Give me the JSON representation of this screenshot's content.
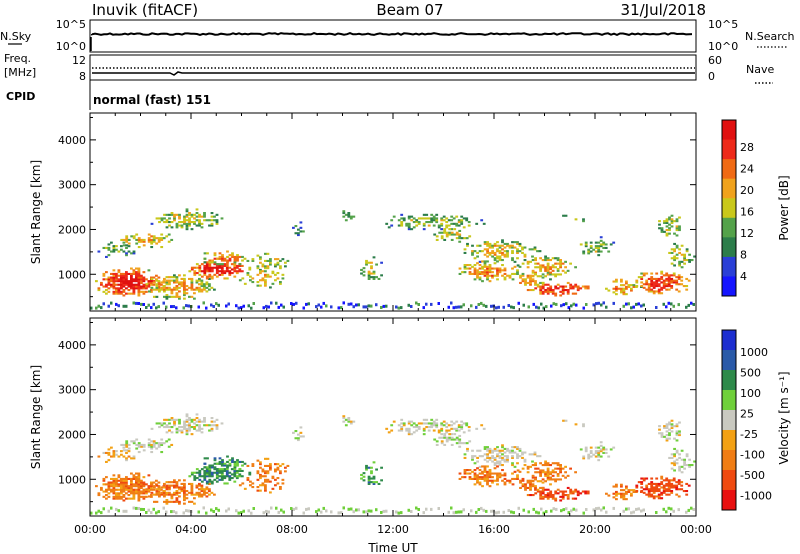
{
  "header": {
    "station": "Inuvik (fitACF)",
    "beam": "Beam 07",
    "date": "31/Jul/2018"
  },
  "top_panels": {
    "nsky_label": "N.Sky",
    "nsky_ticks": [
      "10^5",
      "10^0"
    ],
    "nsearch_label": "N.Search",
    "nsearch_ticks": [
      "10^5",
      "10^0"
    ],
    "freq_label_1": "Freq.",
    "freq_label_2": "[MHz]",
    "freq_ticks": [
      "12",
      "8"
    ],
    "nave_label": "Nave",
    "nave_ticks": [
      "60",
      "0"
    ],
    "cpid_label": "CPID",
    "cpid_value": "normal (fast) 151"
  },
  "colors": {
    "power_scale": [
      "#1515ff",
      "#2a3fd6",
      "#2c7d4a",
      "#54a24a",
      "#c9c81b",
      "#f0a21c",
      "#f06a14",
      "#ee2a1a",
      "#e01010"
    ],
    "velocity_scale": [
      "#e81010",
      "#ef4a10",
      "#f07d14",
      "#f3a114",
      "#c9c9c0",
      "#6fcf3a",
      "#2e8a4a",
      "#2a5aa8",
      "#1c2ed0"
    ]
  },
  "chart_data": [
    {
      "type": "heatmap",
      "name": "power",
      "ylabel": "Slant Range [km]",
      "yticks": [
        "4000",
        "3000",
        "2000",
        "1000"
      ],
      "ylim": [
        180,
        4600
      ],
      "xlim": [
        "00:00",
        "24:00"
      ],
      "colorbar_label": "Power [dB]",
      "colorbar_ticks": [
        "28",
        "24",
        "20",
        "16",
        "12",
        "8",
        "4"
      ]
    },
    {
      "type": "heatmap",
      "name": "velocity",
      "ylabel": "Slant Range [km]",
      "yticks": [
        "4000",
        "3000",
        "2000",
        "1000"
      ],
      "ylim": [
        180,
        4600
      ],
      "xlim": [
        "00:00",
        "24:00"
      ],
      "xticks": [
        "00:00",
        "04:00",
        "08:00",
        "12:00",
        "16:00",
        "20:00",
        "00:00"
      ],
      "xlabel": "Time UT",
      "colorbar_label": "Velocity [m s⁻¹]",
      "colorbar_ticks": [
        "1000",
        "500",
        "100",
        "25",
        "-25",
        "-100",
        "-500",
        "-1000"
      ]
    }
  ]
}
